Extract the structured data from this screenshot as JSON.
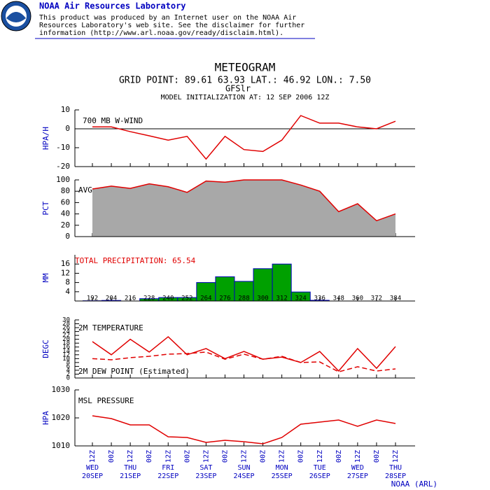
{
  "header": {
    "org": "NOAA Air Resources Laboratory",
    "disclaimer": [
      "This product was produced by an Internet user on the NOAA Air",
      "Resources Laboratory's web site.  See the disclaimer for further",
      "information (http://www.arl.noaa.gov/ready/disclaim.html)."
    ]
  },
  "title": "METEOGRAM",
  "grid_point": "GRID POINT:  89.61  63.93 LAT.:  46.92 LON.:   7.50",
  "model": "GFSlr",
  "init": "MODEL INITIALIZATION AT: 12 SEP 2006 12Z",
  "footer": "NOAA (ARL)",
  "chart_data": [
    {
      "type": "line",
      "y_label": "HPA/H",
      "ylim": [
        -20,
        10
      ],
      "yticks": [
        -20,
        -10,
        0,
        10
      ],
      "series": [
        {
          "name": "700 MB  W-WIND",
          "color": "#e00000",
          "values": [
            1,
            1,
            -1.5,
            -3.7,
            -6,
            -4,
            -16,
            -4,
            -11,
            -12,
            -6,
            7,
            3,
            3,
            1,
            0,
            4
          ]
        }
      ]
    },
    {
      "type": "area",
      "y_label": "PCT",
      "ylim": [
        0,
        100
      ],
      "yticks": [
        0,
        20,
        40,
        60,
        80,
        100
      ],
      "fill": "#a8a8a8",
      "series": [
        {
          "name": "AVG",
          "color": "#e00000",
          "values": [
            84,
            89,
            85,
            93,
            88,
            78,
            98,
            96,
            100,
            100,
            100,
            91,
            80,
            44,
            58,
            28,
            40
          ]
        }
      ]
    },
    {
      "type": "bar",
      "y_label": "MM",
      "annotation": "TOTAL PRECIPITATION:  65.54",
      "ylim": [
        0,
        20
      ],
      "yticks": [
        4,
        8,
        12,
        16
      ],
      "color": "#00a000",
      "edge_color": "#0000c0",
      "categories": [
        192,
        204,
        216,
        228,
        240,
        252,
        264,
        276,
        288,
        300,
        312,
        324,
        336,
        348,
        360,
        372,
        384
      ],
      "values": [
        0.1,
        0.24,
        0,
        1,
        1.5,
        1.5,
        8,
        10.5,
        8.5,
        14,
        16,
        3.9,
        0.3,
        0,
        0,
        0,
        0
      ]
    },
    {
      "type": "line",
      "y_label": "DEGC",
      "ylim": [
        0,
        30
      ],
      "yticks": [
        0,
        2,
        4,
        6,
        8,
        10,
        12,
        14,
        16,
        18,
        20,
        22,
        24,
        26,
        28,
        30
      ],
      "series": [
        {
          "name": "2M TEMPERATURE",
          "color": "#e00000",
          "values": [
            18.8,
            12,
            20,
            13.4,
            21.3,
            12,
            15.2,
            10,
            13.7,
            9.7,
            10.8,
            8,
            13.7,
            3.6,
            15.2,
            5,
            16.2
          ]
        },
        {
          "name": "2M DEW POINT (Estimated)",
          "color": "#e00000",
          "dash": true,
          "values": [
            10,
            9.4,
            10.5,
            11.2,
            12.3,
            12.6,
            13.4,
            9.7,
            12.3,
            9.7,
            11.2,
            8,
            8.3,
            3.2,
            5.8,
            3.6,
            4.7
          ]
        }
      ]
    },
    {
      "type": "line",
      "y_label": "HPA",
      "ylim": [
        1010,
        1030
      ],
      "yticks": [
        1010,
        1020,
        1030
      ],
      "series": [
        {
          "name": "MSL PRESSURE",
          "color": "#e00000",
          "values": [
            1020.75,
            1019.75,
            1017.5,
            1017.5,
            1013.25,
            1013,
            1011.25,
            1012,
            1011.5,
            1010.75,
            1013,
            1017.75,
            1018.5,
            1019.25,
            1017,
            1019.25,
            1018
          ]
        }
      ],
      "categories": [
        "12Z",
        "00Z",
        "12Z",
        "00Z",
        "12Z",
        "00Z",
        "12Z",
        "00Z",
        "12Z",
        "00Z",
        "12Z",
        "00Z",
        "12Z",
        "00Z",
        "12Z",
        "00Z",
        "12Z"
      ],
      "days": [
        {
          "day": "WED",
          "date": "20SEP"
        },
        {
          "day": "THU",
          "date": "21SEP"
        },
        {
          "day": "FRI",
          "date": "22SEP"
        },
        {
          "day": "SAT",
          "date": "23SEP"
        },
        {
          "day": "SUN",
          "date": "24SEP"
        },
        {
          "day": "MON",
          "date": "25SEP"
        },
        {
          "day": "TUE",
          "date": "26SEP"
        },
        {
          "day": "WED",
          "date": "27SEP"
        },
        {
          "day": "THU",
          "date": "28SEP"
        }
      ]
    }
  ]
}
